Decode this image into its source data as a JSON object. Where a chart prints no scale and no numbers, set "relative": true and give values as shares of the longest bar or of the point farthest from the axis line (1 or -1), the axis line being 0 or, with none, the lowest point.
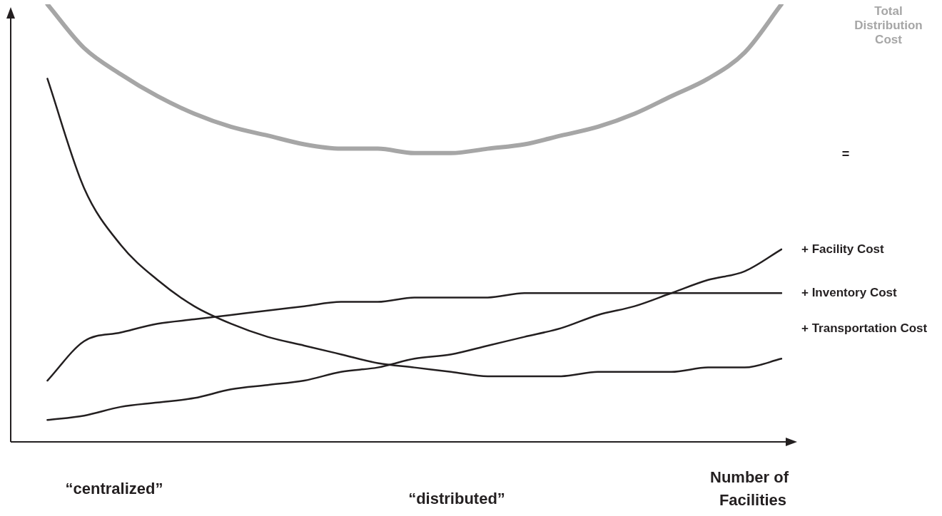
{
  "chart_data": {
    "type": "line",
    "relative": true,
    "xlabel": "Number of Facilities",
    "legend": false,
    "marker": "none",
    "categories": [
      null,
      null,
      null,
      null,
      null,
      null,
      null,
      null,
      null,
      null,
      null,
      null,
      null,
      null,
      null,
      null,
      null,
      null,
      null,
      null,
      null,
      null
    ],
    "series": [
      {
        "name": "Total Distribution Cost",
        "color": "#a6a6a6",
        "values": [
          null,
          1.0,
          0.9,
          0.84,
          0.79,
          0.75,
          0.72,
          0.7,
          0.68,
          0.67,
          0.67,
          0.66,
          0.66,
          0.67,
          0.68,
          0.7,
          0.72,
          0.75,
          0.79,
          0.83,
          0.89,
          1.0
        ]
      },
      {
        "name": "+ Facility Cost",
        "color": "#231f20",
        "values": [
          null,
          0.05,
          0.06,
          0.08,
          0.09,
          0.1,
          0.12,
          0.13,
          0.14,
          0.16,
          0.17,
          0.19,
          0.2,
          0.22,
          0.24,
          0.26,
          0.29,
          0.31,
          0.34,
          0.37,
          0.39,
          0.44
        ]
      },
      {
        "name": "+ Inventory Cost",
        "color": "#231f20",
        "values": [
          null,
          0.14,
          0.23,
          0.25,
          0.27,
          0.28,
          0.29,
          0.3,
          0.31,
          0.32,
          0.32,
          0.33,
          0.33,
          0.33,
          0.34,
          0.34,
          0.34,
          0.34,
          0.34,
          0.34,
          0.34,
          0.34
        ]
      },
      {
        "name": "+ Transportation Cost",
        "color": "#231f20",
        "values": [
          null,
          0.83,
          0.58,
          0.45,
          0.37,
          0.31,
          0.27,
          0.24,
          0.22,
          0.2,
          0.18,
          0.17,
          0.16,
          0.15,
          0.15,
          0.15,
          0.16,
          0.16,
          0.16,
          0.17,
          0.17,
          0.19
        ]
      }
    ],
    "annotations": [
      "=",
      "“centralized”",
      "“distributed”"
    ]
  }
}
